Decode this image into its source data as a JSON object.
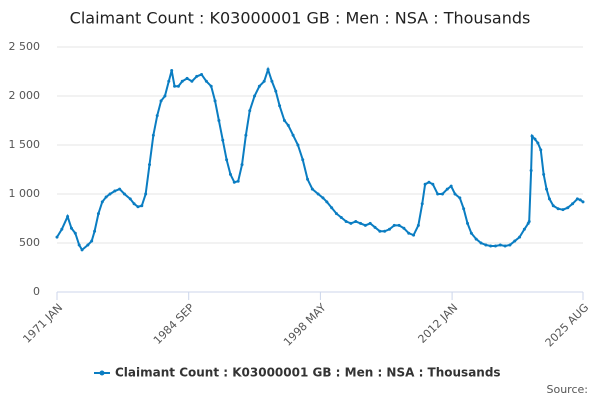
{
  "chart_data": {
    "type": "line",
    "title": "Claimant Count : K03000001 GB : Men : NSA : Thousands",
    "source": "Source:",
    "x": [
      1971.0,
      1971.5,
      1972.1,
      1972.5,
      1972.9,
      1973.3,
      1973.6,
      1974.2,
      1974.6,
      1974.9,
      1975.3,
      1975.7,
      1976.1,
      1976.5,
      1977.0,
      1977.5,
      1978.0,
      1978.6,
      1979.0,
      1979.4,
      1979.8,
      1980.2,
      1980.6,
      1981.0,
      1981.4,
      1981.8,
      1982.2,
      1982.6,
      1982.9,
      1983.2,
      1983.6,
      1984.0,
      1984.5,
      1985.0,
      1985.5,
      1986.0,
      1986.5,
      1987.0,
      1987.4,
      1987.8,
      1988.2,
      1988.6,
      1989.0,
      1989.4,
      1989.8,
      1990.2,
      1990.6,
      1991.0,
      1991.5,
      1992.0,
      1992.5,
      1992.9,
      1993.3,
      1993.7,
      1994.1,
      1994.6,
      1995.0,
      1995.5,
      1996.0,
      1996.5,
      1997.0,
      1997.5,
      1998.1,
      1998.6,
      1999.0,
      1999.5,
      2000.0,
      2000.5,
      2001.0,
      2001.5,
      2002.0,
      2002.5,
      2003.0,
      2003.5,
      2004.0,
      2004.5,
      2005.0,
      2005.5,
      2006.0,
      2006.5,
      2007.0,
      2007.5,
      2008.0,
      2008.5,
      2008.9,
      2009.2,
      2009.6,
      2010.0,
      2010.5,
      2011.0,
      2011.5,
      2011.9,
      2012.3,
      2012.8,
      2013.2,
      2013.6,
      2014.0,
      2014.5,
      2015.0,
      2015.5,
      2016.0,
      2016.5,
      2017.0,
      2017.5,
      2018.0,
      2018.5,
      2019.0,
      2019.5,
      2019.9,
      2020.0,
      2020.2,
      2020.3,
      2020.6,
      2020.9,
      2021.2,
      2021.5,
      2021.8,
      2022.1,
      2022.5,
      2023.0,
      2023.5,
      2024.0,
      2024.5,
      2025.0,
      2025.3,
      2025.583
    ],
    "series": [
      {
        "name": "Claimant Count : K03000001 GB : Men : NSA : Thousands",
        "color": "#0a7dc2",
        "values": [
          560,
          640,
          770,
          650,
          600,
          480,
          430,
          480,
          520,
          620,
          800,
          920,
          970,
          1000,
          1030,
          1050,
          1000,
          950,
          900,
          870,
          880,
          1000,
          1300,
          1600,
          1800,
          1950,
          2000,
          2150,
          2260,
          2100,
          2100,
          2150,
          2180,
          2150,
          2200,
          2220,
          2150,
          2100,
          1950,
          1750,
          1550,
          1350,
          1200,
          1120,
          1130,
          1300,
          1600,
          1850,
          2000,
          2100,
          2150,
          2270,
          2150,
          2050,
          1900,
          1750,
          1700,
          1600,
          1500,
          1350,
          1150,
          1050,
          1000,
          960,
          920,
          860,
          800,
          760,
          720,
          700,
          720,
          700,
          680,
          700,
          660,
          620,
          620,
          640,
          680,
          680,
          650,
          600,
          580,
          680,
          900,
          1100,
          1120,
          1100,
          1000,
          1000,
          1050,
          1080,
          1000,
          960,
          850,
          700,
          600,
          540,
          500,
          480,
          470,
          470,
          480,
          470,
          480,
          520,
          560,
          640,
          700,
          720,
          1240,
          1590,
          1560,
          1520,
          1450,
          1200,
          1050,
          950,
          880,
          850,
          840,
          860,
          900,
          950,
          940,
          920
        ]
      }
    ],
    "xlim": [
      1971,
      2025.583
    ],
    "xticks": [
      {
        "value": 1971,
        "label": "1971 JAN"
      },
      {
        "value": 1984.667,
        "label": "1984 SEP"
      },
      {
        "value": 1998.333,
        "label": "1998 MAY"
      },
      {
        "value": 2012,
        "label": "2012 JAN"
      },
      {
        "value": 2025.583,
        "label": "2025 AUG"
      }
    ],
    "ylim": [
      0,
      2500
    ],
    "yticks": [
      0,
      500,
      {
        "value": 1000,
        "label": "1 000"
      },
      {
        "value": 1500,
        "label": "1 500"
      },
      {
        "value": 2000,
        "label": "2 000"
      },
      {
        "value": 2500,
        "label": "2 500"
      }
    ],
    "grid": true
  }
}
